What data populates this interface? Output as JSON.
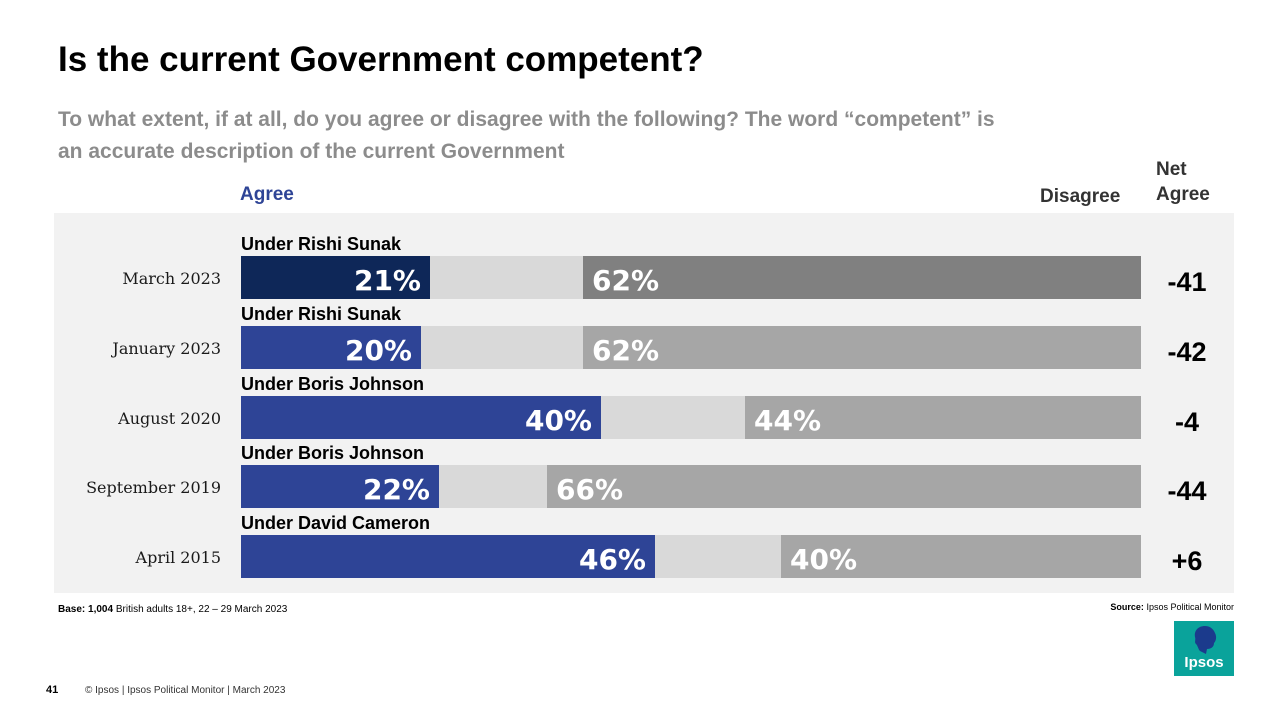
{
  "header": {
    "title": "Is the current Government competent?",
    "subtitle": "To what extent, if at all, do you agree or disagree with the following? The word “competent” is an accurate description of the current Government"
  },
  "legend": {
    "agree": "Agree",
    "disagree": "Disagree",
    "net_line1": "Net",
    "net_line2": "Agree"
  },
  "footer": {
    "base_label": "Base:",
    "base_count": "1,004",
    "base_text": "British adults 18+,  22 – 29 March 2023",
    "source_label": "Source:",
    "source_text": "Ipsos Political Monitor",
    "page_number": "41",
    "copyright": "© Ipsos | Ipsos Political Monitor | March 2023",
    "logo_text": "Ipsos"
  },
  "colors": {
    "agree_highlight": "#0e2758",
    "agree": "#2e4496",
    "neutral": "#d9d9d9",
    "disagree_highlight": "#808080",
    "disagree": "#a6a6a6"
  },
  "chart_data": {
    "type": "bar",
    "orientation": "horizontal-stacked",
    "categories": [
      "March 2023",
      "January 2023",
      "August 2020",
      "September 2019",
      "April 2015"
    ],
    "leaders": [
      "Under Rishi Sunak",
      "Under Rishi Sunak",
      "Under Boris Johnson",
      "Under Boris Johnson",
      "Under David Cameron"
    ],
    "series": [
      {
        "name": "Agree",
        "values": [
          21,
          20,
          40,
          22,
          46
        ]
      },
      {
        "name": "Disagree",
        "values": [
          62,
          62,
          44,
          66,
          40
        ]
      }
    ],
    "net_agree": [
      "-41",
      "-42",
      "-4",
      "-44",
      "+6"
    ],
    "xlim": [
      0,
      100
    ]
  }
}
